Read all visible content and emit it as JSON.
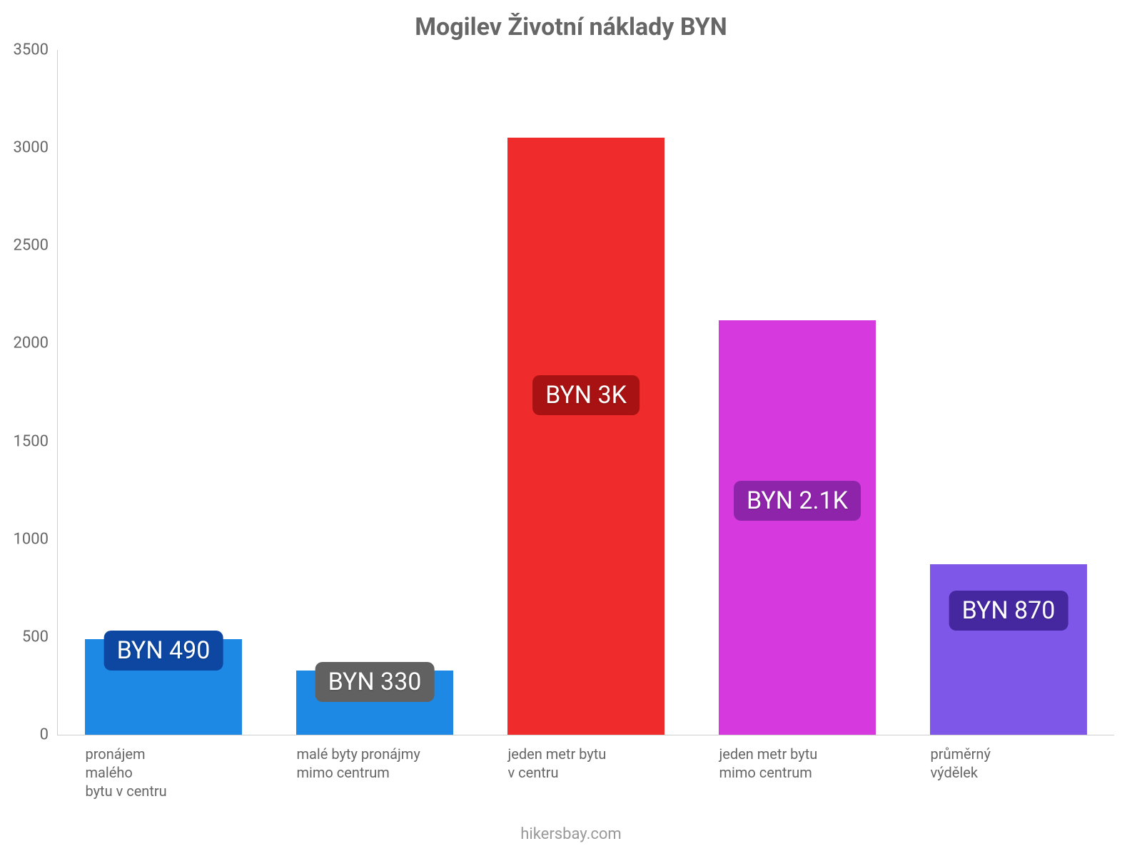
{
  "chart": {
    "type": "bar",
    "title": "Mogilev Životní náklady BYN",
    "title_fontsize": 34,
    "title_color": "#666666",
    "background_color": "#ffffff",
    "axis_color": "#cfcfcf",
    "tick_font_color": "#666666",
    "tick_fontsize": 22,
    "xlabel_color": "#666666",
    "xlabel_fontsize": 20,
    "ylim_min": 0,
    "ylim_max": 3500,
    "ytick_step": 500,
    "yticks": [
      0,
      500,
      1000,
      1500,
      2000,
      2500,
      3000,
      3500
    ],
    "bar_width_ratio": 0.74,
    "bars": [
      {
        "label_lines": [
          "pronájem",
          "malého",
          "bytu v centru"
        ],
        "value": 490,
        "value_label": "BYN 490",
        "fill_color": "#1e88e5",
        "badge_bg": "#0d47a1"
      },
      {
        "label_lines": [
          "malé byty pronájmy",
          "mimo centrum"
        ],
        "value": 330,
        "value_label": "BYN 330",
        "fill_color": "#1e88e5",
        "badge_bg": "#616161"
      },
      {
        "label_lines": [
          "jeden metr bytu",
          "v centru"
        ],
        "value": 3050,
        "value_label": "BYN 3K",
        "fill_color": "#ef2b2b",
        "badge_bg": "#a81212"
      },
      {
        "label_lines": [
          "jeden metr bytu",
          "mimo centrum"
        ],
        "value": 2120,
        "value_label": "BYN 2.1K",
        "fill_color": "#d63adf",
        "badge_bg": "#8e24aa"
      },
      {
        "label_lines": [
          "průměrný",
          "výdělek"
        ],
        "value": 870,
        "value_label": "BYN 870",
        "fill_color": "#7e57e8",
        "badge_bg": "#4527a0"
      }
    ],
    "value_badge_fontsize": 34,
    "value_badge_text_color": "#ffffff",
    "value_badge_radius": 10
  },
  "footer": {
    "text": "hikersbay.com",
    "color": "#999999",
    "fontsize": 22
  }
}
